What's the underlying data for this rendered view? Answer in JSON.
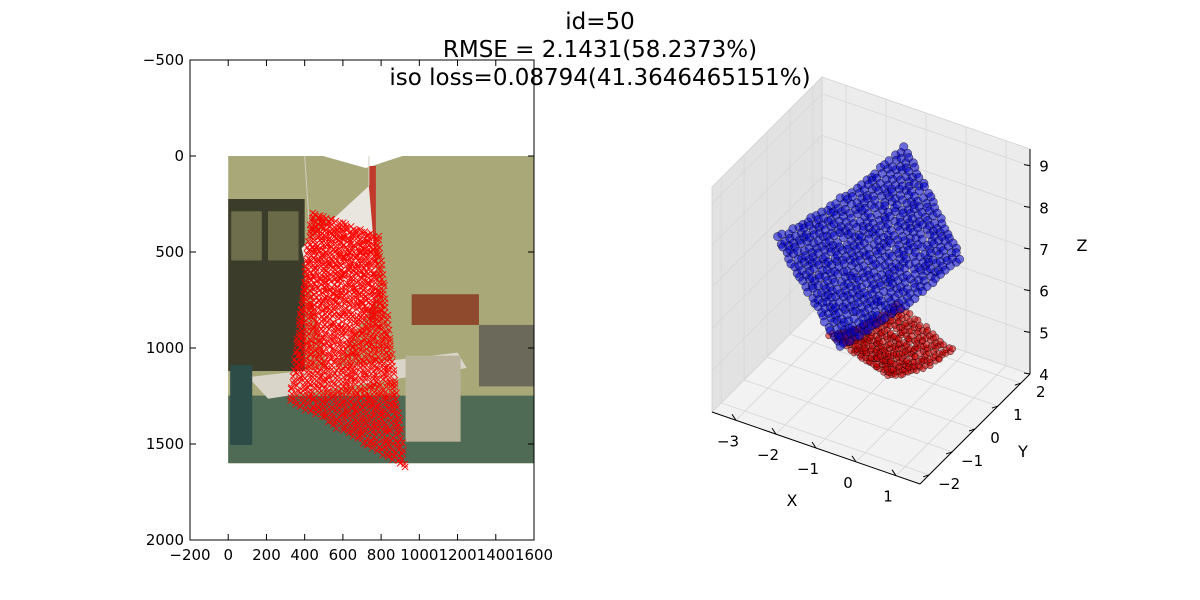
{
  "figure": {
    "title_lines": [
      "id=50",
      "RMSE = 2.1431(58.2373%)",
      "iso loss=0.08794(41.3646465151%)"
    ]
  },
  "chart_data": [
    {
      "type": "scatter",
      "panel": "image-overlay",
      "image": "photo of office room with a white sheet hanging from strings, cabinet and desk visible",
      "image_extent": {
        "x": [
          0,
          1600
        ],
        "y": [
          0,
          1600
        ]
      },
      "xlim": [
        -200,
        1600
      ],
      "ylim": [
        2000,
        -500
      ],
      "xticks": [
        -200,
        0,
        200,
        400,
        600,
        800,
        1000,
        1200,
        1400,
        1600
      ],
      "yticks": [
        -500,
        0,
        500,
        1000,
        1500,
        2000
      ],
      "marker": "x",
      "marker_color": "#ff0000",
      "points_region": {
        "top_left": [
          440,
          300
        ],
        "top_right": [
          780,
          420
        ],
        "bottom_right": [
          920,
          1620
        ],
        "bottom_left": [
          330,
          1270
        ]
      }
    },
    {
      "type": "scatter3d",
      "panel": "3d-point-cloud",
      "xlabel": "X",
      "ylabel": "Y",
      "zlabel": "Z",
      "xticks": [
        -3,
        -2,
        -1,
        0,
        1
      ],
      "yticks": [
        -2,
        -1,
        0,
        1,
        2
      ],
      "zticks": [
        4,
        5,
        6,
        7,
        8,
        9
      ],
      "series": [
        {
          "color": "#0000cc",
          "zrange": [
            5.0,
            9.3
          ]
        },
        {
          "color": "#cc0000",
          "zrange": [
            4.0,
            5.5
          ]
        }
      ]
    }
  ]
}
